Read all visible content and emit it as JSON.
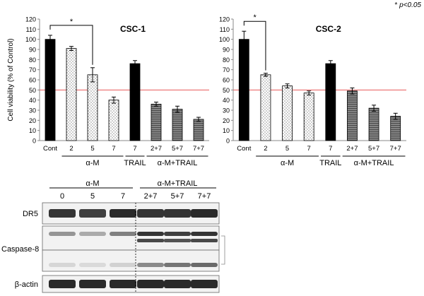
{
  "significance_note": {
    "symbol": "*",
    "text": "p<0.05"
  },
  "chart_data": [
    {
      "type": "bar",
      "title": "CSC-1",
      "ylabel": "Cell viability (% of Control)",
      "ylim": [
        0,
        120
      ],
      "yticks": [
        0,
        10,
        20,
        30,
        40,
        50,
        60,
        70,
        80,
        90,
        100,
        110,
        120
      ],
      "reference_line": {
        "value": 50,
        "color": "#e85a5a"
      },
      "categories": [
        "Cont",
        "2",
        "5",
        "7",
        "7",
        "2+7",
        "5+7",
        "7+7"
      ],
      "values": [
        100,
        91,
        65,
        40,
        76,
        36,
        31,
        21
      ],
      "errors": [
        4,
        2,
        7,
        3,
        3,
        2,
        3,
        2
      ],
      "styles": [
        "black",
        "dotted",
        "dotted",
        "dotted",
        "black",
        "hatched",
        "hatched",
        "hatched"
      ],
      "groups": [
        {
          "label": "α-M",
          "from": 1,
          "to": 3
        },
        {
          "label": "TRAIL",
          "from": 4,
          "to": 4
        },
        {
          "label": "α-M+TRAIL",
          "from": 5,
          "to": 7
        }
      ],
      "significance": [
        {
          "from": 0,
          "to": 2,
          "label": "*"
        }
      ],
      "grid": false
    },
    {
      "type": "bar",
      "title": "CSC-2",
      "ylabel": "",
      "ylim": [
        0,
        120
      ],
      "yticks": [
        0,
        10,
        20,
        30,
        40,
        50,
        60,
        70,
        80,
        90,
        100,
        110,
        120
      ],
      "reference_line": {
        "value": 50,
        "color": "#e85a5a"
      },
      "categories": [
        "Cont",
        "2",
        "5",
        "7",
        "7",
        "2+7",
        "5+7",
        "7+7"
      ],
      "values": [
        100,
        65,
        54,
        47,
        76,
        49,
        32,
        24
      ],
      "errors": [
        8,
        1.5,
        2,
        2,
        3,
        3,
        3,
        3
      ],
      "styles": [
        "black",
        "dotted",
        "dotted",
        "dotted",
        "black",
        "hatched",
        "hatched",
        "hatched"
      ],
      "groups": [
        {
          "label": "α-M",
          "from": 1,
          "to": 3
        },
        {
          "label": "TRAIL",
          "from": 4,
          "to": 4
        },
        {
          "label": "α-M+TRAIL",
          "from": 5,
          "to": 7
        }
      ],
      "significance": [
        {
          "from": 0,
          "to": 1,
          "label": "*"
        }
      ],
      "grid": false
    }
  ],
  "blot": {
    "group_headers": [
      "α-M",
      "α-M+TRAIL"
    ],
    "lane_labels": [
      "0",
      "5",
      "7",
      "2+7",
      "5+7",
      "7+7"
    ],
    "rows": [
      {
        "label": "DR5",
        "band_intensity": [
          0.85,
          0.8,
          0.9,
          0.85,
          0.85,
          0.9
        ]
      },
      {
        "label": "Caspase-8",
        "band_intensity": [
          0.4,
          0.3,
          0.5,
          0.85,
          0.8,
          0.85
        ]
      },
      {
        "label": "",
        "band_intensity": [
          0.1,
          0.08,
          0.12,
          0.45,
          0.55,
          0.6
        ]
      },
      {
        "label": "β-actin",
        "band_intensity": [
          0.9,
          0.9,
          0.9,
          0.9,
          0.9,
          0.9
        ]
      }
    ]
  }
}
